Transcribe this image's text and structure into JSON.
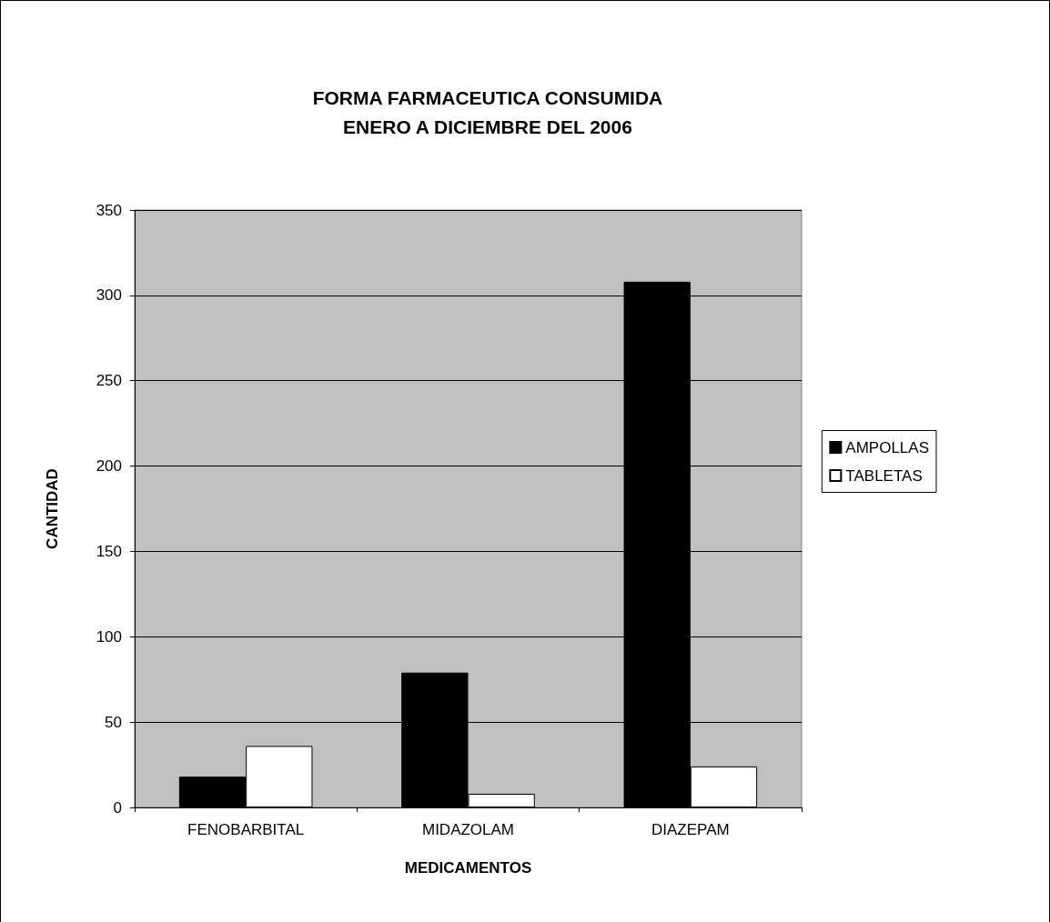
{
  "chart_data": {
    "type": "bar",
    "title": "FORMA FARMACEUTICA CONSUMIDA\nENERO A DICIEMBRE DEL 2006",
    "xlabel": "MEDICAMENTOS",
    "ylabel": "CANTIDAD",
    "categories": [
      "FENOBARBITAL",
      "MIDAZOLAM",
      "DIAZEPAM"
    ],
    "series": [
      {
        "name": "AMPOLLAS",
        "color": "#000000",
        "values": [
          18,
          79,
          308
        ]
      },
      {
        "name": "TABLETAS",
        "color": "#ffffff",
        "values": [
          36,
          8,
          24
        ]
      }
    ],
    "ylim": [
      0,
      350
    ],
    "yticks": [
      0,
      50,
      100,
      150,
      200,
      250,
      300,
      350
    ],
    "grid": "y",
    "legend": "right"
  }
}
